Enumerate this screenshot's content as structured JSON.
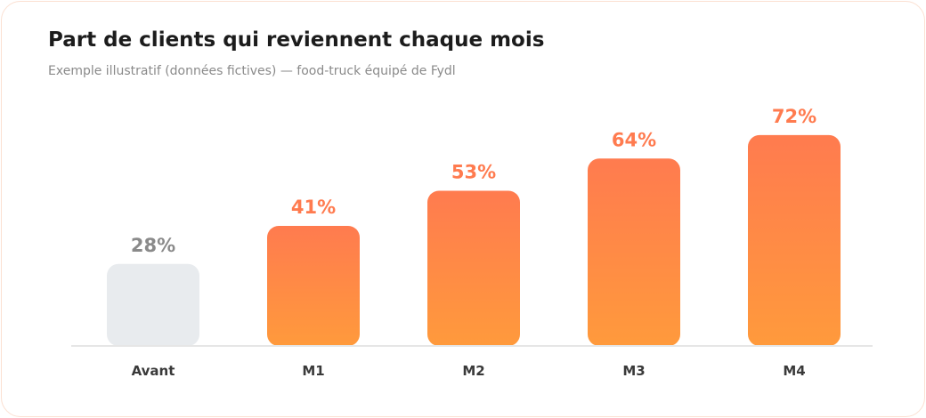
{
  "title": "Part de clients qui reviennent chaque mois",
  "subtitle": "Exemple illustratif (données fictives) — food-truck équipé de Fydl",
  "colors": {
    "baseline_bar": "#e8ebee",
    "baseline_label": "#8a8a8a",
    "accent_top": "#ff7b4f",
    "accent_bottom": "#ff9a3c",
    "accent_label": "#ff7b4f",
    "axis": "#e6e6e6"
  },
  "chart_data": {
    "type": "bar",
    "categories": [
      "Avant",
      "M1",
      "M2",
      "M3",
      "M4"
    ],
    "values": [
      28,
      41,
      53,
      64,
      72
    ],
    "value_labels": [
      "28%",
      "41%",
      "53%",
      "64%",
      "72%"
    ],
    "unit": "%",
    "ylim": [
      0,
      82
    ],
    "grid": false,
    "legend": "none"
  }
}
